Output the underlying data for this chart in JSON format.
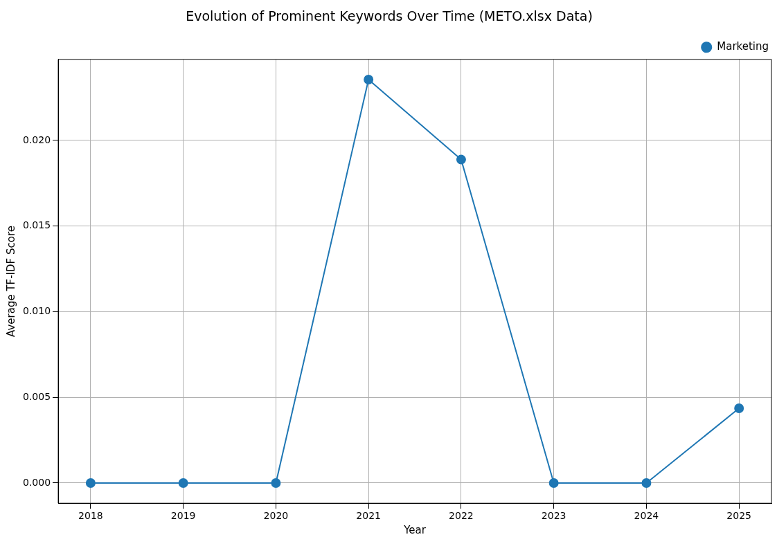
{
  "chart_data": {
    "type": "line",
    "title": "Evolution of Prominent Keywords Over Time (METO.xlsx Data)",
    "xlabel": "Year",
    "ylabel": "Average TF-IDF Score",
    "x": [
      2018,
      2019,
      2020,
      2021,
      2022,
      2023,
      2024,
      2025
    ],
    "series": [
      {
        "name": "Marketing",
        "color": "#1f77b4",
        "values": [
          0,
          0,
          0,
          0.02355,
          0.01888,
          0,
          0,
          0.00436
        ]
      }
    ],
    "xlim": [
      2017.65,
      2025.35
    ],
    "xticks": [
      2018,
      2019,
      2020,
      2021,
      2022,
      2023,
      2024,
      2025
    ],
    "ylim": [
      -0.00118,
      0.02473
    ],
    "yticks": [
      {
        "value": 0,
        "label": "0.000"
      },
      {
        "value": 0.005,
        "label": "0.005"
      },
      {
        "value": 0.01,
        "label": "0.010"
      },
      {
        "value": 0.015,
        "label": "0.015"
      },
      {
        "value": 0.02,
        "label": "0.020"
      }
    ],
    "grid": true,
    "legend": "top right",
    "marker": "circle",
    "line_style": "solid"
  }
}
